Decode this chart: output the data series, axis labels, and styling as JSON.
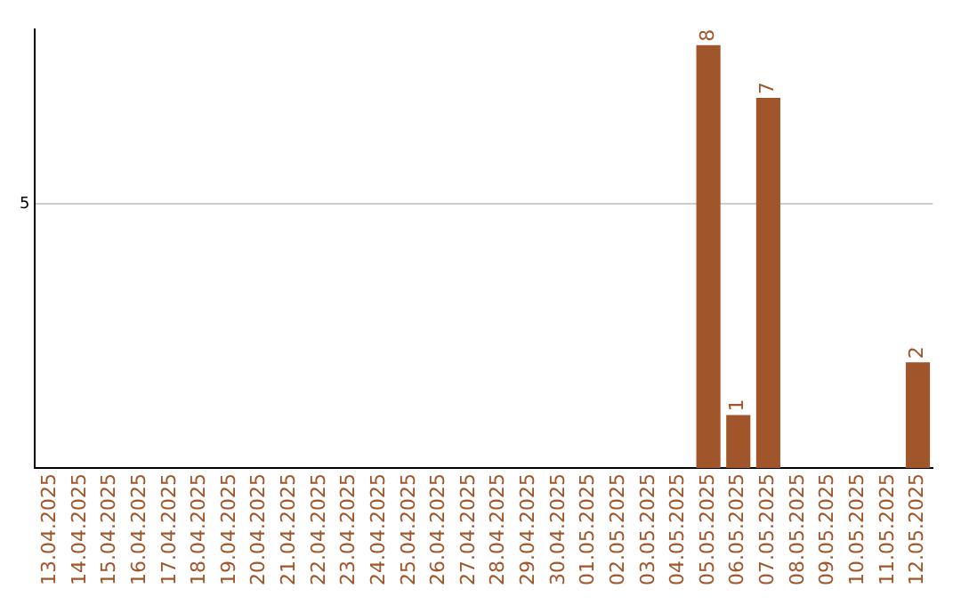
{
  "chart_data": {
    "type": "bar",
    "categories": [
      "13.04.2025",
      "14.04.2025",
      "15.04.2025",
      "16.04.2025",
      "17.04.2025",
      "18.04.2025",
      "19.04.2025",
      "20.04.2025",
      "21.04.2025",
      "22.04.2025",
      "23.04.2025",
      "24.04.2025",
      "25.04.2025",
      "26.04.2025",
      "27.04.2025",
      "28.04.2025",
      "29.04.2025",
      "30.04.2025",
      "01.05.2025",
      "02.05.2025",
      "03.05.2025",
      "04.05.2025",
      "05.05.2025",
      "06.05.2025",
      "07.05.2025",
      "08.05.2025",
      "09.05.2025",
      "10.05.2025",
      "11.05.2025",
      "12.05.2025"
    ],
    "values": [
      null,
      null,
      null,
      null,
      null,
      null,
      null,
      null,
      null,
      null,
      null,
      null,
      null,
      null,
      null,
      null,
      null,
      null,
      null,
      null,
      null,
      null,
      8,
      1,
      7,
      null,
      null,
      null,
      null,
      2
    ],
    "data_labels": true,
    "color": "#a0552a",
    "ylim": [
      0,
      8.3
    ],
    "yticks": [
      5
    ],
    "grid": "y",
    "legend": false
  }
}
